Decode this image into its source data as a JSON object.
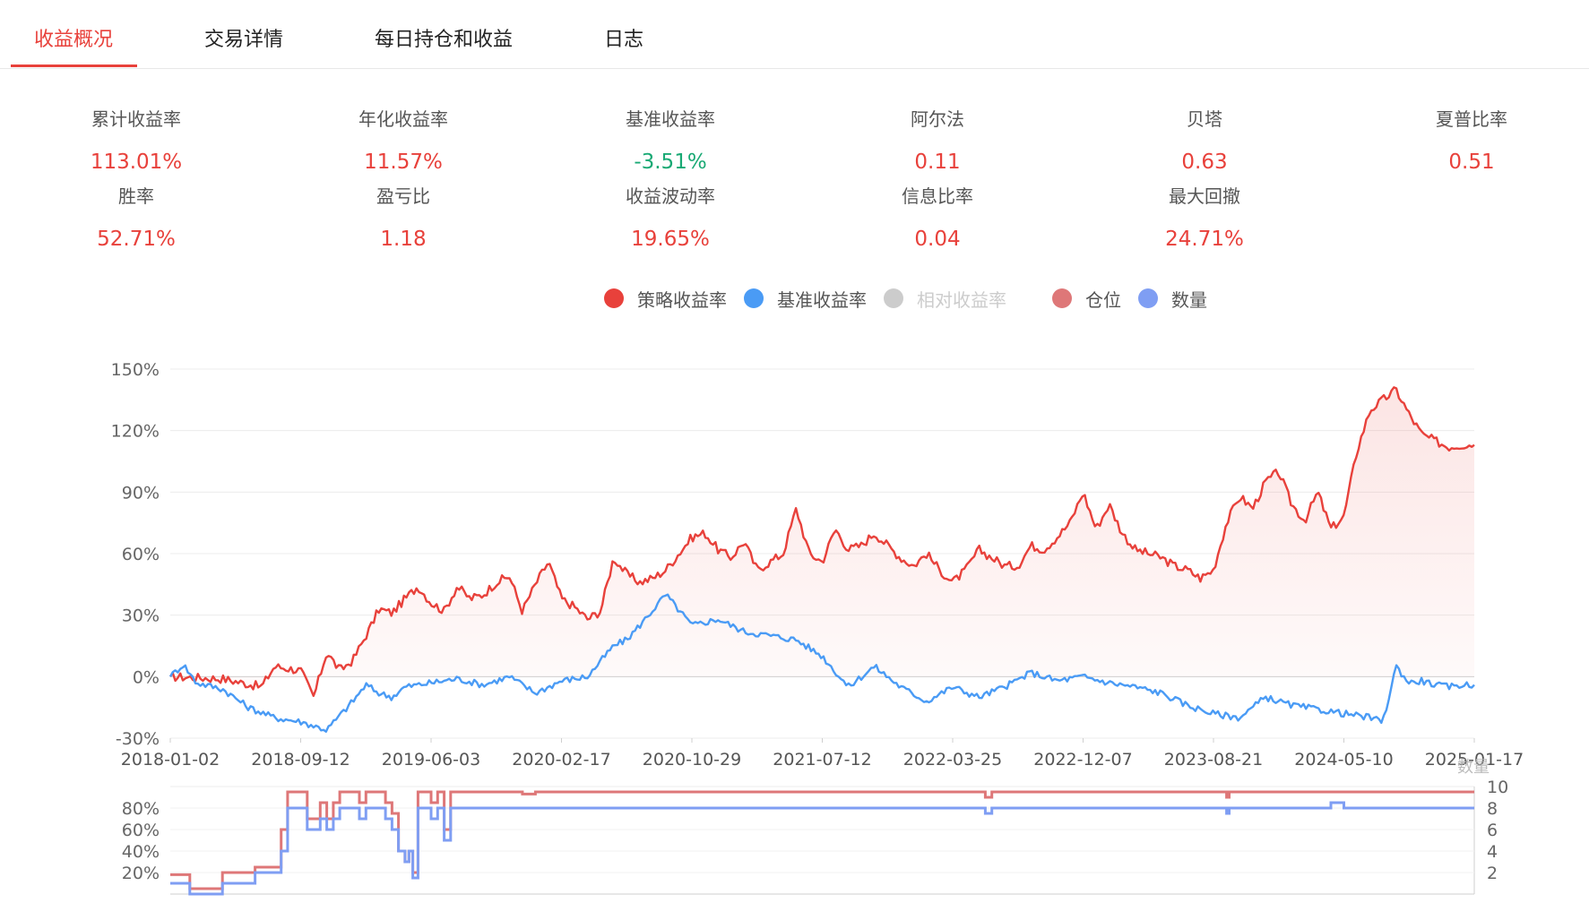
{
  "tabs": [
    {
      "label": "收益概况",
      "active": true
    },
    {
      "label": "交易详情",
      "active": false
    },
    {
      "label": "每日持仓和收益",
      "active": false
    },
    {
      "label": "日志",
      "active": false
    }
  ],
  "metrics": [
    {
      "label": "累计收益率",
      "value": "113.01%",
      "color": "#e8413b"
    },
    {
      "label": "年化收益率",
      "value": "11.57%",
      "color": "#e8413b"
    },
    {
      "label": "基准收益率",
      "value": "-3.51%",
      "color": "#19a974"
    },
    {
      "label": "阿尔法",
      "value": "0.11",
      "color": "#e8413b"
    },
    {
      "label": "贝塔",
      "value": "0.63",
      "color": "#e8413b"
    },
    {
      "label": "夏普比率",
      "value": "0.51",
      "color": "#e8413b"
    },
    {
      "label": "胜率",
      "value": "52.71%",
      "color": "#e8413b"
    },
    {
      "label": "盈亏比",
      "value": "1.18",
      "color": "#e8413b"
    },
    {
      "label": "收益波动率",
      "value": "19.65%",
      "color": "#e8413b"
    },
    {
      "label": "信息比率",
      "value": "0.04",
      "color": "#e8413b"
    },
    {
      "label": "最大回撤",
      "value": "24.71%",
      "color": "#e8413b"
    }
  ],
  "legend": [
    {
      "label": "策略收益率",
      "color": "#e8413b",
      "active": true
    },
    {
      "label": "基准收益率",
      "color": "#4a9bf5",
      "active": true
    },
    {
      "label": "相对收益率",
      "color": "#cccccc",
      "active": false
    },
    {
      "label": "仓位",
      "color": "#de7778",
      "active": true
    },
    {
      "label": "数量",
      "color": "#7f9ef3",
      "active": true
    }
  ],
  "chart_data": [
    {
      "type": "line",
      "x_ticks": [
        "2018-01-02",
        "2018-09-12",
        "2019-06-03",
        "2020-02-17",
        "2020-10-29",
        "2021-07-12",
        "2022-03-25",
        "2022-12-07",
        "2023-08-21",
        "2024-05-10",
        "2025-01-17"
      ],
      "y_ticks": [
        "150%",
        "120%",
        "90%",
        "60%",
        "30%",
        "0%",
        "-30%"
      ],
      "ylim": [
        -30,
        150
      ],
      "series": [
        {
          "name": "策略收益率",
          "color": "#e8413b",
          "area": true,
          "x": [
            0,
            0.04,
            0.07,
            0.08,
            0.1,
            0.11,
            0.12,
            0.13,
            0.14,
            0.155,
            0.16,
            0.17,
            0.18,
            0.19,
            0.2,
            0.21,
            0.22,
            0.23,
            0.24,
            0.25,
            0.26,
            0.27,
            0.28,
            0.29,
            0.3,
            0.31,
            0.32,
            0.33,
            0.34,
            0.35,
            0.36,
            0.37,
            0.38,
            0.39,
            0.4,
            0.41,
            0.42,
            0.43,
            0.44,
            0.45,
            0.46,
            0.47,
            0.48,
            0.49,
            0.5,
            0.51,
            0.52,
            0.53,
            0.54,
            0.55,
            0.56,
            0.57,
            0.58,
            0.59,
            0.6,
            0.61,
            0.62,
            0.63,
            0.64,
            0.65,
            0.66,
            0.67,
            0.68,
            0.69,
            0.7,
            0.71,
            0.72,
            0.73,
            0.74,
            0.75,
            0.76,
            0.77,
            0.78,
            0.79,
            0.8,
            0.81,
            0.82,
            0.83,
            0.84,
            0.85,
            0.86,
            0.87,
            0.88,
            0.89,
            0.9,
            0.91,
            0.92,
            0.93,
            0.94,
            0.95,
            0.96,
            0.97,
            0.98,
            0.99,
            1
          ],
          "y": [
            0,
            -1,
            -5,
            5,
            3,
            -10,
            12,
            3,
            8,
            26,
            33,
            31,
            38,
            44,
            36,
            32,
            44,
            38,
            40,
            46,
            49,
            32,
            45,
            56,
            38,
            34,
            28,
            32,
            58,
            50,
            46,
            48,
            52,
            60,
            68,
            70,
            62,
            58,
            66,
            52,
            56,
            60,
            82,
            60,
            56,
            72,
            62,
            64,
            70,
            64,
            58,
            54,
            60,
            52,
            46,
            52,
            62,
            58,
            54,
            54,
            64,
            62,
            68,
            75,
            90,
            72,
            84,
            70,
            62,
            60,
            58,
            54,
            52,
            48,
            52,
            75,
            88,
            82,
            95,
            100,
            84,
            76,
            90,
            72,
            78,
            110,
            130,
            135,
            140,
            128,
            118,
            115,
            112,
            113,
            113
          ]
        },
        {
          "name": "基准收益率",
          "color": "#4a9bf5",
          "area": false,
          "x": [
            0,
            0.01,
            0.02,
            0.04,
            0.06,
            0.08,
            0.1,
            0.12,
            0.14,
            0.15,
            0.16,
            0.17,
            0.18,
            0.2,
            0.22,
            0.24,
            0.26,
            0.28,
            0.3,
            0.32,
            0.34,
            0.35,
            0.36,
            0.38,
            0.4,
            0.42,
            0.44,
            0.46,
            0.48,
            0.5,
            0.52,
            0.54,
            0.56,
            0.58,
            0.6,
            0.62,
            0.64,
            0.66,
            0.68,
            0.7,
            0.72,
            0.74,
            0.76,
            0.78,
            0.8,
            0.82,
            0.84,
            0.86,
            0.88,
            0.9,
            0.92,
            0.93,
            0.94,
            0.95,
            0.96,
            0.97,
            0.98,
            0.99,
            1
          ],
          "y": [
            0,
            6,
            -3,
            -6,
            -15,
            -20,
            -22,
            -26,
            -12,
            -4,
            -8,
            -10,
            -5,
            -3,
            -1,
            -4,
            0,
            -8,
            -2,
            0,
            15,
            18,
            25,
            40,
            25,
            28,
            22,
            20,
            18,
            10,
            -5,
            5,
            -5,
            -12,
            -5,
            -10,
            -5,
            2,
            -2,
            0,
            -3,
            -5,
            -8,
            -14,
            -18,
            -20,
            -10,
            -14,
            -16,
            -18,
            -20,
            -22,
            5,
            -3,
            -2,
            -4,
            -5,
            -4,
            -4
          ]
        }
      ]
    },
    {
      "type": "line",
      "ylabel": "数量",
      "y_ticks_left": [
        "80%",
        "60%",
        "40%",
        "20%"
      ],
      "y_ticks_right": [
        "10",
        "8",
        "6",
        "4",
        "2"
      ],
      "ylim_left": [
        0,
        100
      ],
      "ylim_right": [
        0,
        10
      ],
      "series": [
        {
          "name": "仓位",
          "color": "#de7778",
          "x": [
            0,
            0.01,
            0.015,
            0.02,
            0.04,
            0.05,
            0.06,
            0.065,
            0.07,
            0.08,
            0.085,
            0.09,
            0.1,
            0.105,
            0.11,
            0.115,
            0.12,
            0.125,
            0.13,
            0.14,
            0.145,
            0.15,
            0.16,
            0.165,
            0.17,
            0.175,
            0.18,
            0.183,
            0.186,
            0.19,
            0.195,
            0.2,
            0.205,
            0.21,
            0.215,
            0.22,
            0.225,
            0.23,
            0.24,
            0.25,
            0.26,
            0.27,
            0.28,
            0.3,
            0.32,
            0.34,
            0.36,
            0.4,
            0.6,
            0.62,
            0.625,
            0.63,
            0.64,
            0.8,
            0.81,
            0.812,
            0.82,
            0.9,
            1
          ],
          "y": [
            18,
            18,
            5,
            5,
            20,
            20,
            20,
            25,
            25,
            25,
            60,
            95,
            95,
            70,
            70,
            85,
            70,
            85,
            95,
            95,
            85,
            95,
            95,
            85,
            75,
            40,
            30,
            40,
            20,
            95,
            95,
            85,
            95,
            60,
            95,
            95,
            95,
            95,
            95,
            95,
            95,
            93,
            95,
            95,
            95,
            95,
            95,
            95,
            95,
            95,
            90,
            95,
            95,
            95,
            90,
            95,
            95,
            95,
            95
          ]
        },
        {
          "name": "数量",
          "color": "#7f9ef3",
          "x": [
            0,
            0.01,
            0.015,
            0.02,
            0.04,
            0.05,
            0.06,
            0.065,
            0.07,
            0.08,
            0.085,
            0.09,
            0.1,
            0.105,
            0.11,
            0.115,
            0.12,
            0.125,
            0.13,
            0.14,
            0.145,
            0.15,
            0.16,
            0.165,
            0.17,
            0.175,
            0.18,
            0.183,
            0.186,
            0.19,
            0.195,
            0.2,
            0.205,
            0.21,
            0.215,
            0.22,
            0.225,
            0.23,
            0.24,
            0.6,
            0.62,
            0.625,
            0.63,
            0.64,
            0.8,
            0.81,
            0.812,
            0.82,
            0.88,
            0.89,
            0.9,
            0.95,
            1
          ],
          "y": [
            1,
            1,
            0,
            0,
            1,
            1,
            1,
            2,
            2,
            2,
            4,
            8,
            8,
            6,
            6,
            7,
            6,
            7,
            8,
            8,
            7,
            8,
            8,
            7,
            6,
            4,
            3,
            4,
            1.5,
            8,
            8,
            7,
            8,
            5,
            8,
            8,
            8,
            8,
            8,
            8,
            8,
            7.5,
            8,
            8,
            8,
            7.5,
            8,
            8,
            8,
            8.5,
            8,
            8,
            8
          ]
        }
      ]
    }
  ]
}
